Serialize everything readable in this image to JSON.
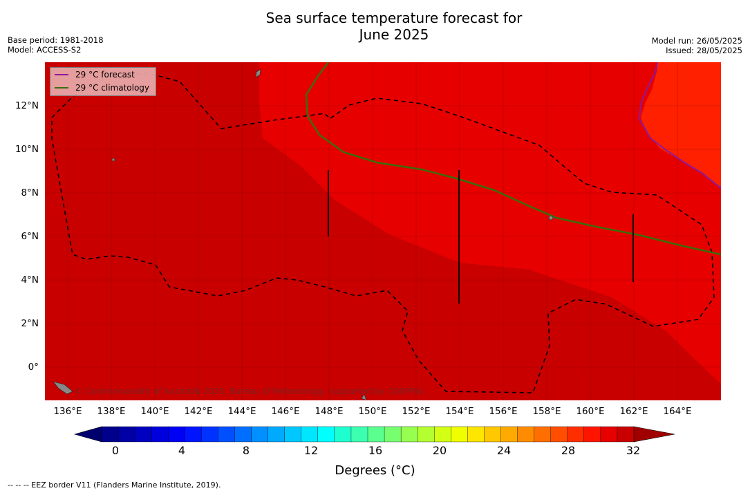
{
  "title": {
    "line1": "Sea surface temperature forecast for",
    "line2": "June 2025"
  },
  "metadata": {
    "base_period": "Base period: 1981-2018",
    "model": "Model: ACCESS-S2",
    "model_run": "Model run: 26/05/2025",
    "issued": "Issued: 28/05/2025"
  },
  "map": {
    "lat_labels": [
      "12°N",
      "10°N",
      "8°N",
      "6°N",
      "4°N",
      "2°N",
      "0°"
    ],
    "lon_labels": [
      "136°E",
      "138°E",
      "140°E",
      "142°E",
      "144°E",
      "146°E",
      "148°E",
      "150°E",
      "152°E",
      "154°E",
      "156°E",
      "158°E",
      "160°E",
      "162°E",
      "164°E"
    ],
    "legend": [
      {
        "label": "29 °C  forecast",
        "color": "#8b1a9e"
      },
      {
        "label": "29 °C  climatology",
        "color": "#3a6e0a"
      }
    ],
    "copyright": "© Commonwealth of Australia 2025, Bureau of Meteorology, supported by COSPPac",
    "fill_colors": {
      "band_30_32": "#c80000",
      "band_28_30": "#e60000",
      "band_above": "#ff2000"
    }
  },
  "colorbar": {
    "tick_labels": [
      "0",
      "4",
      "8",
      "12",
      "16",
      "20",
      "24",
      "28",
      "32"
    ],
    "title": "Degrees (°C)",
    "min": 0,
    "max": 32,
    "step": 1,
    "colors": [
      "#00008c",
      "#0000a5",
      "#0000c0",
      "#0000dc",
      "#0000f5",
      "#0014ff",
      "#0032ff",
      "#0050ff",
      "#006eff",
      "#0090ff",
      "#00aaff",
      "#00c8ff",
      "#00e6ff",
      "#00ffff",
      "#1effcf",
      "#3cffb0",
      "#5aff90",
      "#78ff70",
      "#96ff50",
      "#b4ff30",
      "#d2ff14",
      "#f0ff00",
      "#ffe600",
      "#ffc800",
      "#ffaa00",
      "#ff8c00",
      "#ff6e00",
      "#ff4e00",
      "#ff2e00",
      "#ff1400",
      "#e60000",
      "#c80000"
    ],
    "low_color": "#00006e",
    "high_color": "#a00000"
  },
  "footnote": "--  --  -- EEZ border V11 (Flanders Marine Institute, 2019)."
}
